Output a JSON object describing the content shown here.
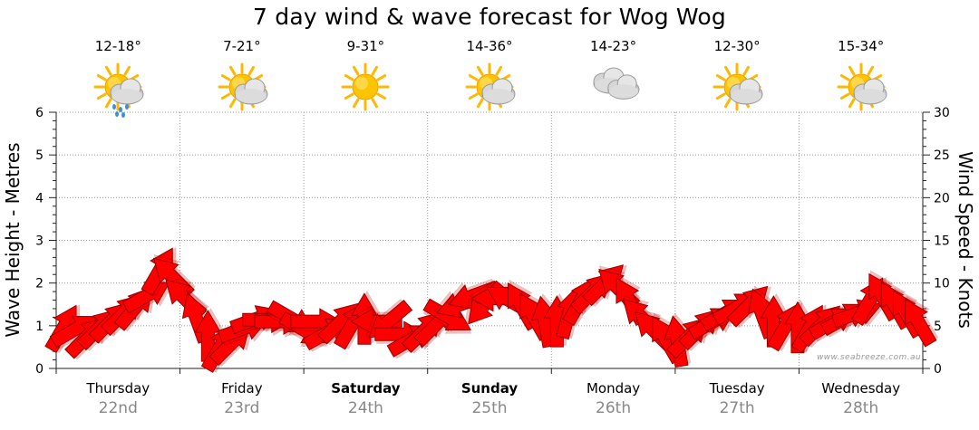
{
  "chart_data": {
    "type": "line",
    "title": "7 day wind & wave forecast for Wog Wog",
    "left_axis": {
      "label": "Wave Height - Metres",
      "ylim": [
        0,
        6
      ],
      "ticks": [
        "0",
        "1",
        "2",
        "3",
        "4",
        "5",
        "6"
      ]
    },
    "right_axis": {
      "label": "Wind Speed - Knots",
      "ylim": [
        0,
        30
      ],
      "ticks": [
        "0",
        "5",
        "10",
        "15",
        "20",
        "25",
        "30"
      ]
    },
    "grid": true,
    "days": [
      {
        "name": "Thursday",
        "date": "22nd",
        "bold": false,
        "temp": "12-18°",
        "icon": "sun-cloud-rain"
      },
      {
        "name": "Friday",
        "date": "23rd",
        "bold": false,
        "temp": "7-21°",
        "icon": "sun-cloud"
      },
      {
        "name": "Saturday",
        "date": "24th",
        "bold": true,
        "temp": "9-31°",
        "icon": "sun"
      },
      {
        "name": "Sunday",
        "date": "25th",
        "bold": true,
        "temp": "14-36°",
        "icon": "sun-cloud"
      },
      {
        "name": "Monday",
        "date": "26th",
        "bold": false,
        "temp": "14-23°",
        "icon": "cloud"
      },
      {
        "name": "Tuesday",
        "date": "27th",
        "bold": false,
        "temp": "12-30°",
        "icon": "sun-cloud"
      },
      {
        "name": "Wednesday",
        "date": "28th",
        "bold": false,
        "temp": "15-34°",
        "icon": "sun-cloud"
      }
    ],
    "series": [
      {
        "axis": "right",
        "arrow_color": "#ff0000",
        "points": [
          [
            0.0,
            4.8,
            60
          ],
          [
            0.15,
            4.6,
            30
          ],
          [
            0.3,
            3.8,
            45
          ],
          [
            0.45,
            4.8,
            45
          ],
          [
            0.6,
            5.6,
            45
          ],
          [
            0.75,
            6.5,
            45
          ],
          [
            0.9,
            7.2,
            50
          ],
          [
            1.05,
            8.6,
            30
          ],
          [
            1.2,
            11.5,
            60
          ],
          [
            1.35,
            10.8,
            135
          ],
          [
            1.5,
            8.3,
            135
          ],
          [
            1.65,
            6.0,
            110
          ],
          [
            1.8,
            3.8,
            90
          ],
          [
            1.95,
            2.5,
            60
          ],
          [
            2.1,
            3.0,
            45
          ],
          [
            2.25,
            4.7,
            20
          ],
          [
            2.4,
            5.8,
            20
          ],
          [
            2.55,
            5.7,
            0
          ],
          [
            2.7,
            5.5,
            0
          ],
          [
            2.85,
            5.8,
            330
          ],
          [
            3.0,
            4.5,
            330
          ],
          [
            3.15,
            5.5,
            0
          ],
          [
            3.3,
            4.3,
            30
          ],
          [
            3.45,
            5.5,
            45
          ],
          [
            3.6,
            5.2,
            60
          ],
          [
            3.75,
            5.8,
            90
          ],
          [
            3.9,
            5.5,
            180
          ],
          [
            4.05,
            5.5,
            220
          ],
          [
            4.2,
            4.0,
            0
          ],
          [
            4.35,
            3.5,
            30
          ],
          [
            4.5,
            4.5,
            45
          ],
          [
            4.65,
            5.2,
            45
          ],
          [
            4.8,
            6.0,
            330
          ],
          [
            4.95,
            7.5,
            200
          ],
          [
            5.1,
            8.5,
            200
          ],
          [
            5.25,
            7.5,
            230
          ],
          [
            5.4,
            8.2,
            180
          ],
          [
            5.55,
            8.0,
            150
          ],
          [
            5.7,
            7.4,
            120
          ],
          [
            5.85,
            6.2,
            120
          ],
          [
            6.0,
            5.5,
            100
          ],
          [
            6.15,
            5.5,
            90
          ],
          [
            6.3,
            6.5,
            75
          ],
          [
            6.45,
            8.0,
            60
          ],
          [
            6.6,
            9.0,
            45
          ],
          [
            6.75,
            10.0,
            45
          ],
          [
            6.9,
            9.5,
            135
          ],
          [
            7.05,
            8.0,
            120
          ],
          [
            7.2,
            6.0,
            135
          ],
          [
            7.35,
            4.5,
            135
          ],
          [
            7.5,
            3.5,
            120
          ],
          [
            7.65,
            3.2,
            100
          ],
          [
            7.8,
            3.8,
            45
          ],
          [
            7.95,
            4.8,
            45
          ],
          [
            8.1,
            5.5,
            30
          ],
          [
            8.25,
            6.5,
            30
          ],
          [
            8.4,
            7.2,
            30
          ],
          [
            8.55,
            7.5,
            45
          ],
          [
            8.7,
            6.5,
            110
          ],
          [
            8.85,
            5.5,
            90
          ],
          [
            9.0,
            5.0,
            60
          ],
          [
            9.15,
            4.8,
            90
          ],
          [
            9.3,
            4.8,
            60
          ],
          [
            9.45,
            5.2,
            45
          ],
          [
            9.6,
            5.5,
            30
          ],
          [
            9.75,
            6.0,
            30
          ],
          [
            9.9,
            6.5,
            20
          ],
          [
            10.05,
            8.0,
            60
          ],
          [
            10.2,
            8.5,
            120
          ],
          [
            10.35,
            7.5,
            120
          ],
          [
            10.5,
            6.5,
            120
          ],
          [
            10.65,
            5.5,
            120
          ]
        ]
      }
    ],
    "watermark": "www.seabreeze.com.au"
  }
}
